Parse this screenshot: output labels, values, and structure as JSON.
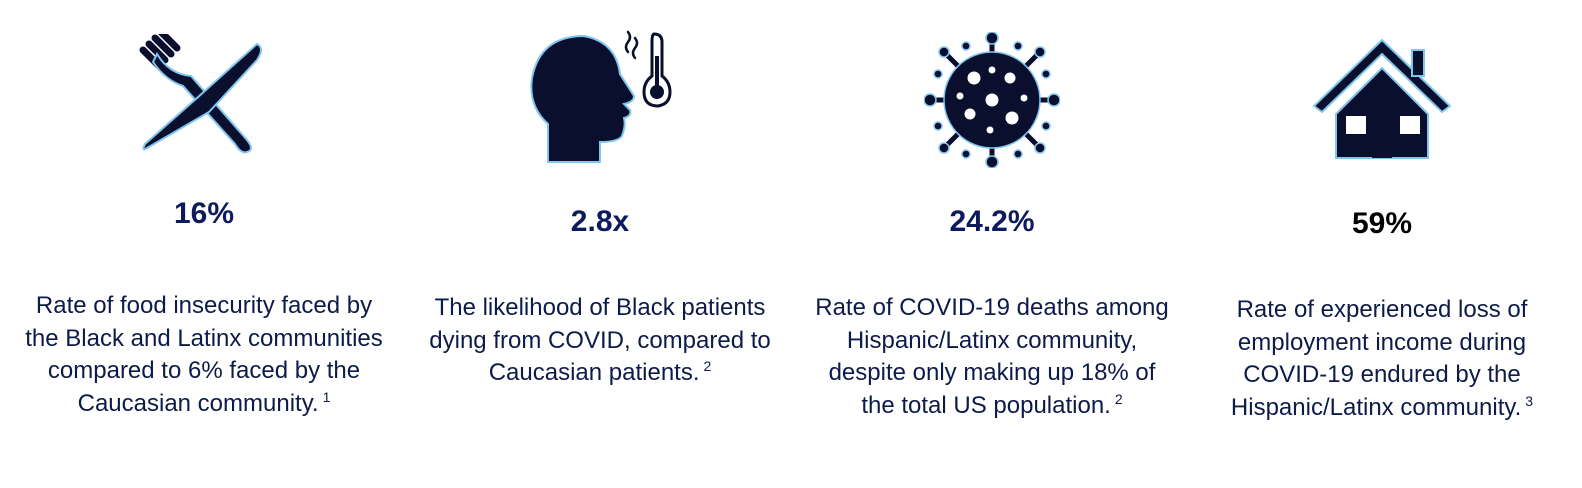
{
  "colors": {
    "navy": "#0d1b4a",
    "icon_fill": "#0a0f2e",
    "icon_outline": "#7fc6f0",
    "value_color": "#0d1b5e",
    "value_black": "#000000"
  },
  "stats": [
    {
      "icon": "fork-knife-icon",
      "value": "16%",
      "description": "Rate of food insecurity faced by the Black and Latinx communities compared to 6% faced by the Caucasian community.",
      "footnote": "1"
    },
    {
      "icon": "fever-head-thermometer-icon",
      "value": "2.8x",
      "description": "The likelihood of Black patients dying from COVID, compared to Caucasian patients.",
      "footnote": "2"
    },
    {
      "icon": "coronavirus-icon",
      "value": "24.2%",
      "description": "Rate of COVID-19 deaths among Hispanic/Latinx community, despite only making up 18% of the total US population.",
      "footnote": "2"
    },
    {
      "icon": "house-icon",
      "value": "59%",
      "description": "Rate of experienced loss of employment income during COVID-19 endured by the Hispanic/Latinx community.",
      "footnote": "3"
    }
  ]
}
